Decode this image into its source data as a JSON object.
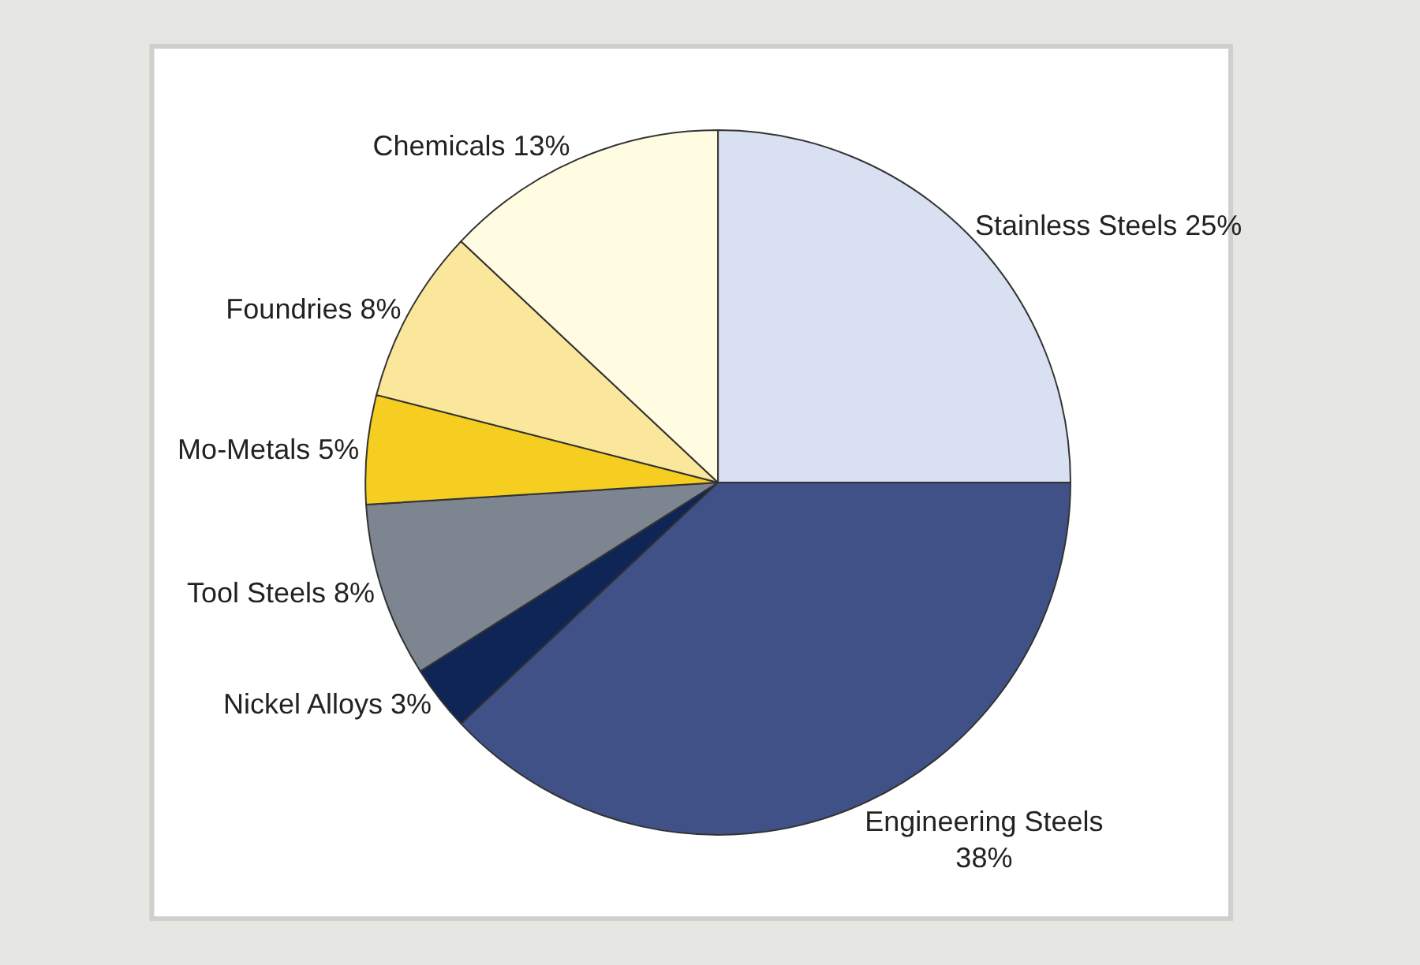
{
  "chart_data": {
    "type": "pie",
    "categories": [
      "Stainless Steels",
      "Engineering Steels",
      "Nickel Alloys",
      "Tool Steels",
      "Mo-Metals",
      "Foundries",
      "Chemicals"
    ],
    "values": [
      25,
      38,
      3,
      8,
      5,
      8,
      13
    ],
    "value_labels": [
      "25%",
      "38%",
      "3%",
      "8%",
      "5%",
      "8%",
      "13%"
    ],
    "colors": [
      "#d9e0f1",
      "#3f5186",
      "#0e2556",
      "#7c8590",
      "#f6cd21",
      "#fbe79b",
      "#fffce2"
    ],
    "legend": false
  }
}
